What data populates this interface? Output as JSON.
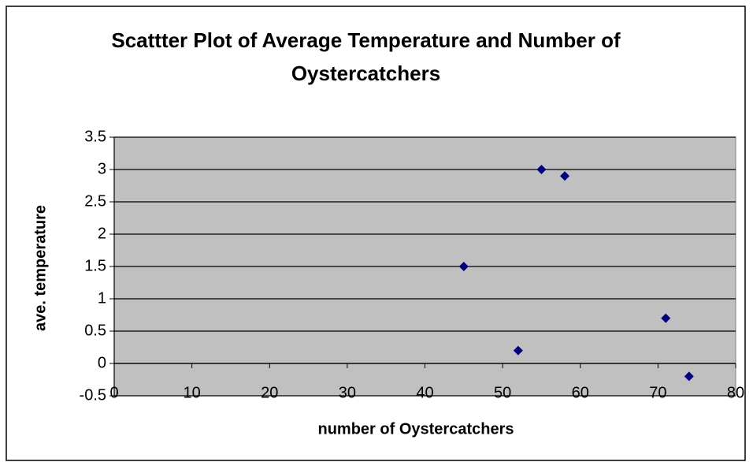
{
  "chart_data": {
    "type": "scatter",
    "title": "Scattter Plot of Average Temperature and Number of Oystercatchers",
    "x_label": "number of Oystercatchers",
    "y_label": "ave. temperature",
    "x": [
      45,
      52,
      55,
      58,
      71,
      74
    ],
    "values": [
      1.5,
      0.2,
      3.0,
      2.9,
      0.7,
      -0.2
    ],
    "color": "#000080",
    "xlim": [
      0,
      80
    ],
    "xticks": [
      0,
      10,
      20,
      30,
      40,
      50,
      60,
      70,
      80
    ],
    "ylim": [
      -0.5,
      3.5
    ],
    "yticks": [
      -0.5,
      0,
      0.5,
      1,
      1.5,
      2,
      2.5,
      3,
      3.5
    ],
    "grid": true
  }
}
